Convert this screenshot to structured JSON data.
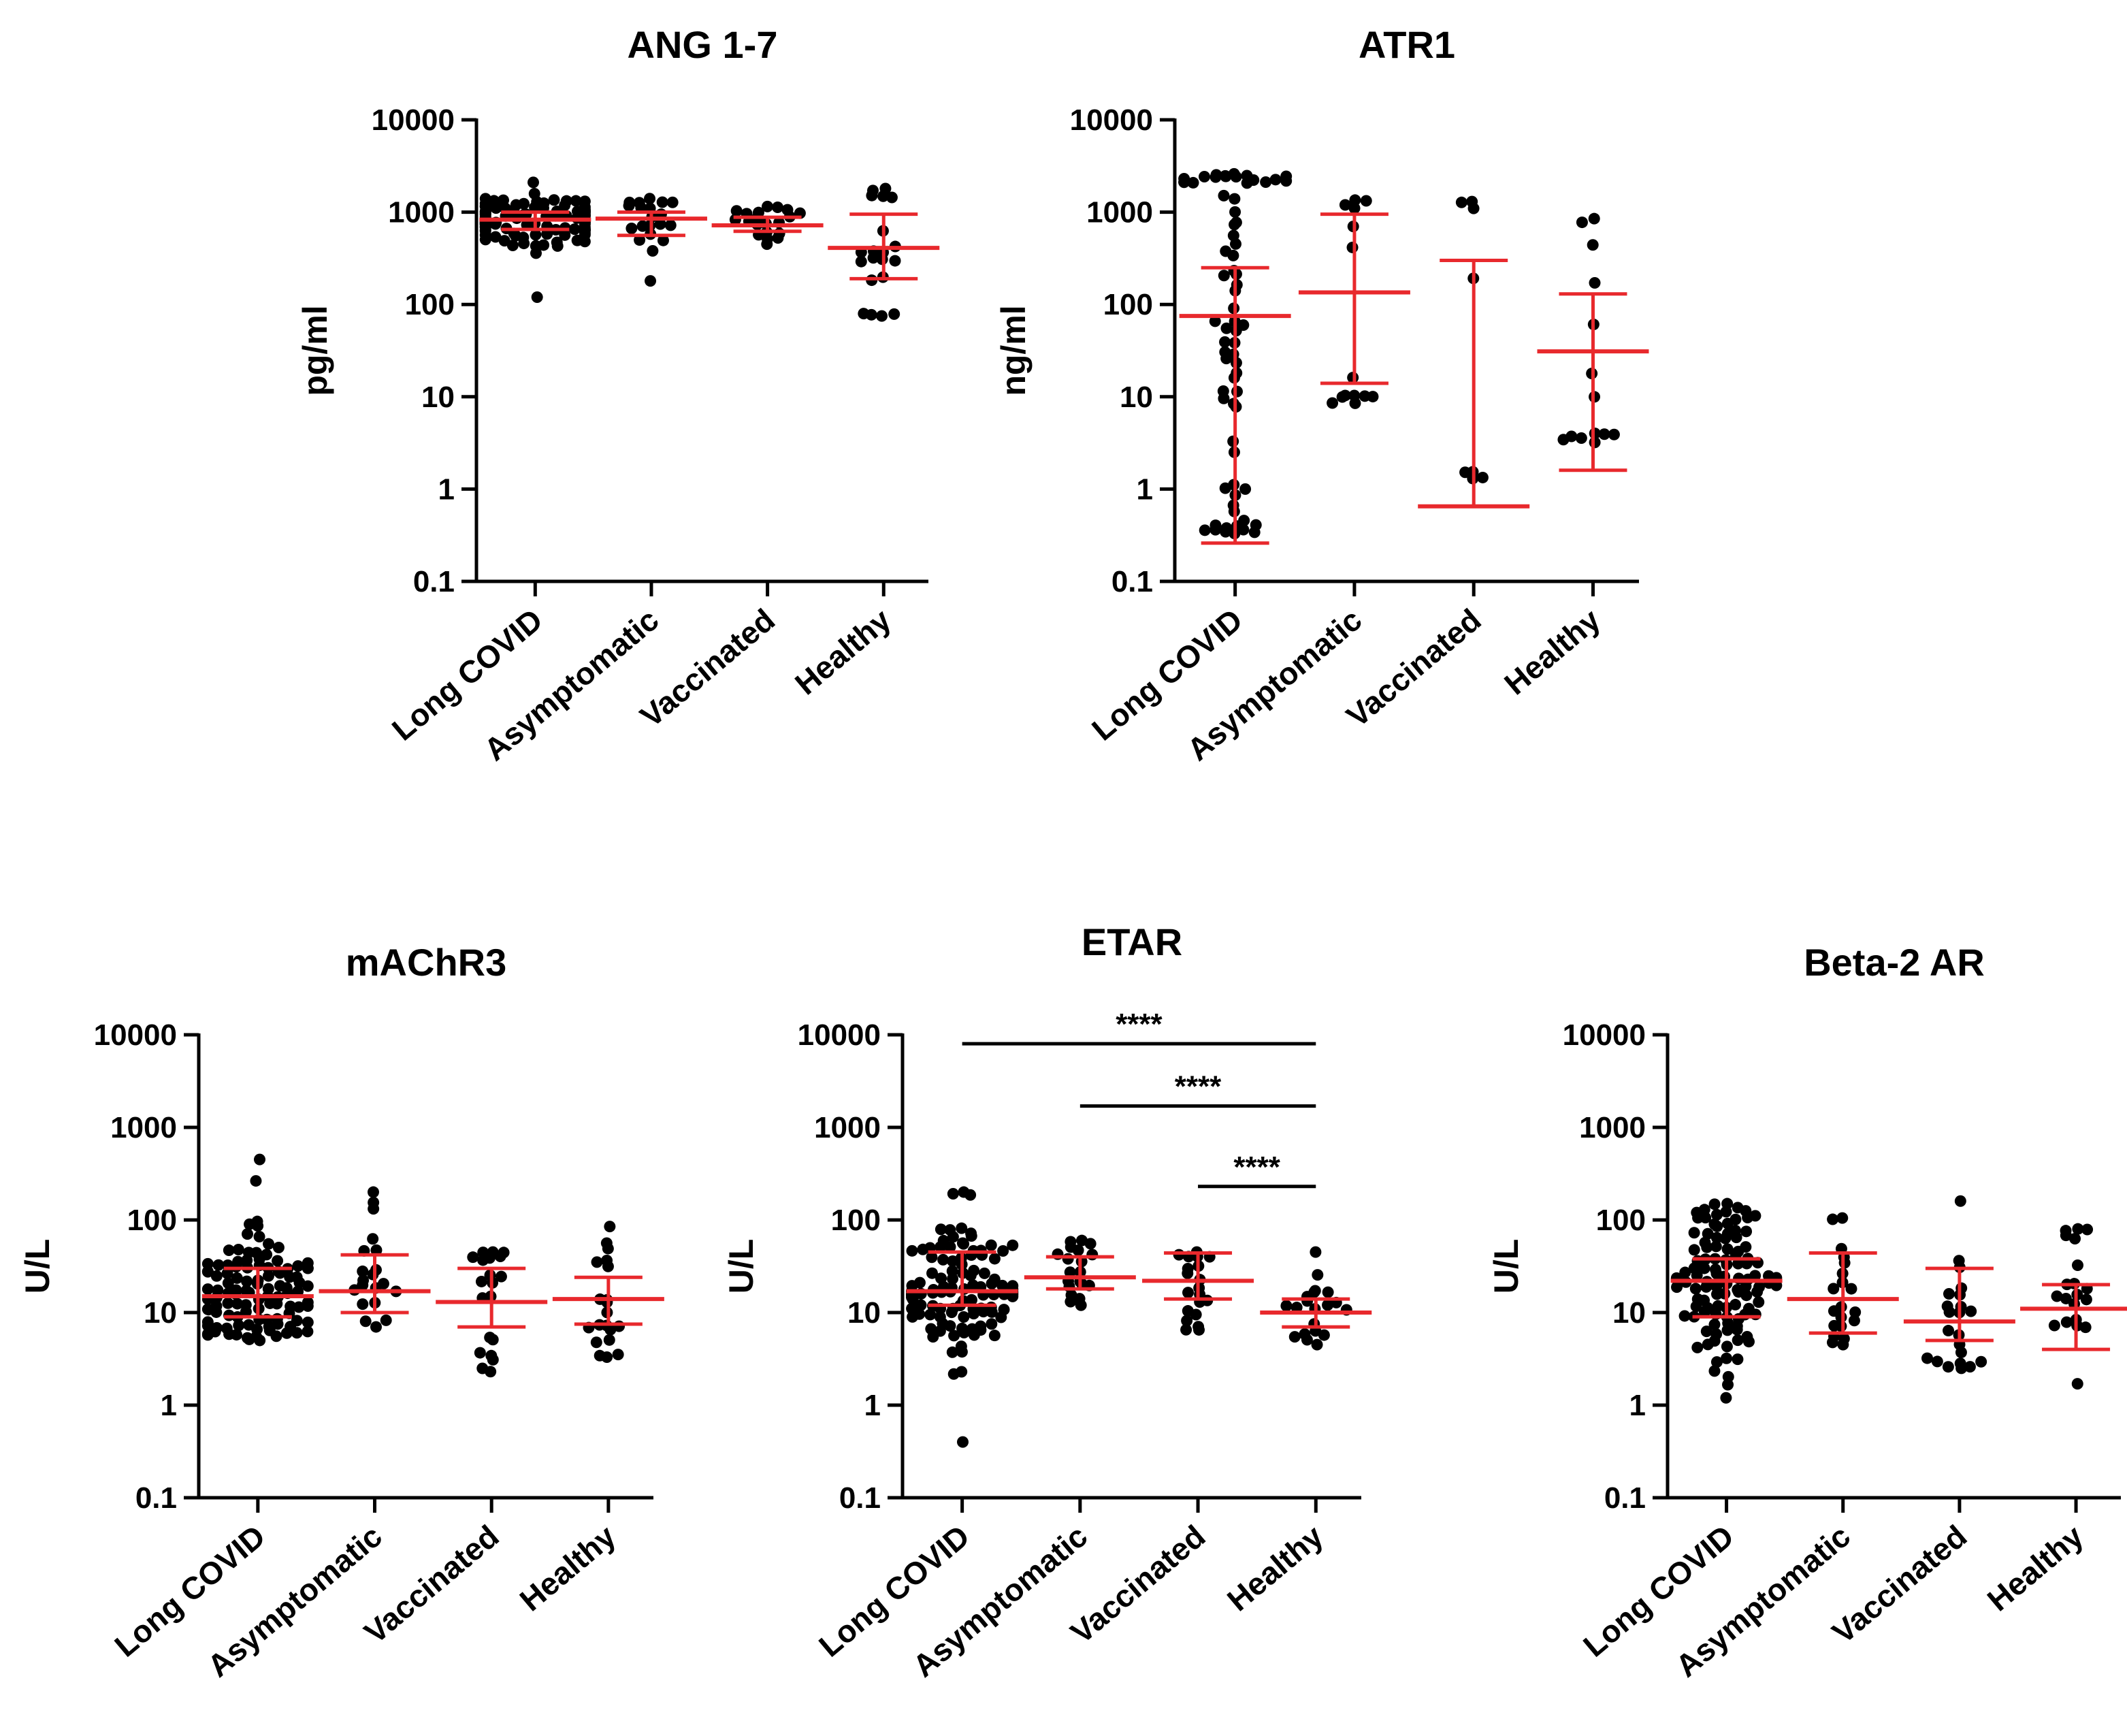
{
  "chart_data": [
    {
      "type": "scatter",
      "title": "ANG 1-7",
      "ylabel": "pg/ml",
      "yscale": "log",
      "ylim": [
        0.1,
        10000
      ],
      "yticks": [
        "0.1",
        "1",
        "10",
        "100",
        "1000",
        "10000"
      ],
      "categories": [
        "Long COVID",
        "Asymptomatic",
        "Vaccinated",
        "Healthy"
      ],
      "colors": {
        "points": "#000000",
        "summary": "#e8292d"
      },
      "groups": [
        {
          "name": "Long COVID",
          "n": 110,
          "median": 830,
          "lower": 650,
          "upper": 1000,
          "min": 120,
          "max": 2100
        },
        {
          "name": "Asymptomatic",
          "n": 20,
          "median": 850,
          "lower": 560,
          "upper": 1000,
          "min": 180,
          "max": 1400
        },
        {
          "name": "Vaccinated",
          "n": 20,
          "median": 720,
          "lower": 620,
          "upper": 880,
          "min": 450,
          "max": 1150
        },
        {
          "name": "Healthy",
          "n": 20,
          "median": 410,
          "lower": 190,
          "upper": 950,
          "min": 75,
          "max": 1800
        }
      ],
      "significance": []
    },
    {
      "type": "scatter",
      "title": "ATR1",
      "ylabel": "ng/ml",
      "yscale": "log",
      "ylim": [
        0.1,
        10000
      ],
      "yticks": [
        "0.1",
        "1",
        "10",
        "100",
        "1000",
        "10000"
      ],
      "categories": [
        "Long COVID",
        "Asymptomatic",
        "Vaccinated",
        "Healthy"
      ],
      "colors": {
        "points": "#000000",
        "summary": "#e8292d"
      },
      "groups": [
        {
          "name": "Long COVID",
          "n": 70,
          "median": 75,
          "lower": 0.26,
          "upper": 250,
          "min": 0.33,
          "max": 2600
        },
        {
          "name": "Asymptomatic",
          "n": 14,
          "median": 135,
          "lower": 14,
          "upper": 950,
          "min": 8.5,
          "max": 1350
        },
        {
          "name": "Vaccinated",
          "n": 8,
          "median": 0.65,
          "lower": 0.65,
          "upper": 300,
          "min": 1.3,
          "max": 1300
        },
        {
          "name": "Healthy",
          "n": 14,
          "median": 31,
          "lower": 1.6,
          "upper": 130,
          "min": 3.2,
          "max": 850
        }
      ],
      "significance": []
    },
    {
      "type": "scatter",
      "title": "mAChR3",
      "ylabel": "U/L",
      "yscale": "log",
      "ylim": [
        0.1,
        10000
      ],
      "yticks": [
        "0.1",
        "1",
        "10",
        "100",
        "1000",
        "10000"
      ],
      "categories": [
        "Long COVID",
        "Asymptomatic",
        "Vaccinated",
        "Healthy"
      ],
      "colors": {
        "points": "#000000",
        "summary": "#e8292d"
      },
      "groups": [
        {
          "name": "Long COVID",
          "n": 110,
          "median": 15,
          "lower": 9,
          "upper": 30,
          "min": 5,
          "max": 450
        },
        {
          "name": "Asymptomatic",
          "n": 20,
          "median": 17,
          "lower": 10,
          "upper": 42,
          "min": 7,
          "max": 200
        },
        {
          "name": "Vaccinated",
          "n": 20,
          "median": 13,
          "lower": 7,
          "upper": 30,
          "min": 2.3,
          "max": 45
        },
        {
          "name": "Healthy",
          "n": 20,
          "median": 14,
          "lower": 7.5,
          "upper": 24,
          "min": 3.3,
          "max": 85
        }
      ],
      "significance": []
    },
    {
      "type": "scatter",
      "title": "ETAR",
      "ylabel": "U/L",
      "yscale": "log",
      "ylim": [
        0.1,
        10000
      ],
      "yticks": [
        "0.1",
        "1",
        "10",
        "100",
        "1000",
        "10000"
      ],
      "categories": [
        "Long COVID",
        "Asymptomatic",
        "Vaccinated",
        "Healthy"
      ],
      "colors": {
        "points": "#000000",
        "summary": "#e8292d"
      },
      "groups": [
        {
          "name": "Long COVID",
          "n": 110,
          "median": 17,
          "lower": 12,
          "upper": 45,
          "min": 0.4,
          "max": 200
        },
        {
          "name": "Asymptomatic",
          "n": 20,
          "median": 24,
          "lower": 18,
          "upper": 40,
          "min": 12,
          "max": 60
        },
        {
          "name": "Vaccinated",
          "n": 20,
          "median": 22,
          "lower": 14,
          "upper": 44,
          "min": 6.5,
          "max": 45
        },
        {
          "name": "Healthy",
          "n": 20,
          "median": 10,
          "lower": 7,
          "upper": 14,
          "min": 4.5,
          "max": 45
        }
      ],
      "significance": [
        {
          "from": "Long COVID",
          "to": "Healthy",
          "label": "****",
          "y": 8000
        },
        {
          "from": "Asymptomatic",
          "to": "Healthy",
          "label": "****",
          "y": 1700
        },
        {
          "from": "Vaccinated",
          "to": "Healthy",
          "label": "****",
          "y": 230
        }
      ]
    },
    {
      "type": "scatter",
      "title": "Beta-2 AR",
      "ylabel": "U/L",
      "yscale": "log",
      "ylim": [
        0.1,
        10000
      ],
      "yticks": [
        "0.1",
        "1",
        "10",
        "100",
        "1000",
        "10000"
      ],
      "categories": [
        "Long COVID",
        "Asymptomatic",
        "Vaccinated",
        "Healthy"
      ],
      "colors": {
        "points": "#000000",
        "summary": "#e8292d"
      },
      "groups": [
        {
          "name": "Long COVID",
          "n": 110,
          "median": 22,
          "lower": 9,
          "upper": 38,
          "min": 1.2,
          "max": 150
        },
        {
          "name": "Asymptomatic",
          "n": 20,
          "median": 14,
          "lower": 6,
          "upper": 44,
          "min": 4.5,
          "max": 105
        },
        {
          "name": "Vaccinated",
          "n": 22,
          "median": 8,
          "lower": 5,
          "upper": 30,
          "min": 2.5,
          "max": 160
        },
        {
          "name": "Healthy",
          "n": 20,
          "median": 11,
          "lower": 4,
          "upper": 20,
          "min": 1.7,
          "max": 80
        }
      ],
      "significance": []
    }
  ]
}
